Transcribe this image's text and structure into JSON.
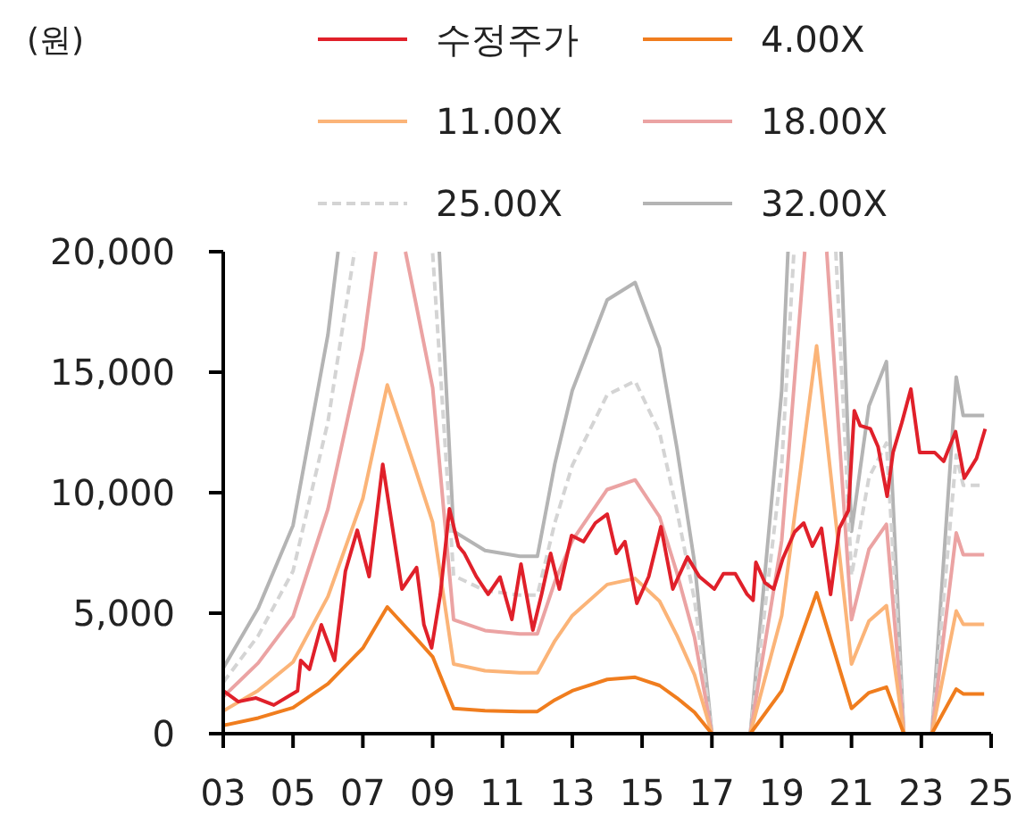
{
  "chart_data": {
    "type": "line",
    "annotations": [
      "(원)"
    ],
    "legend": "top",
    "grid": false,
    "xlim": [
      2003,
      2025
    ],
    "xticks": [
      {
        "value": 2003,
        "label": "03"
      },
      {
        "value": 2005,
        "label": "05"
      },
      {
        "value": 2007,
        "label": "07"
      },
      {
        "value": 2009,
        "label": "09"
      },
      {
        "value": 2011,
        "label": "11"
      },
      {
        "value": 2013,
        "label": "13"
      },
      {
        "value": 2015,
        "label": "15"
      },
      {
        "value": 2017,
        "label": "17"
      },
      {
        "value": 2019,
        "label": "19"
      },
      {
        "value": 2021,
        "label": "21"
      },
      {
        "value": 2023,
        "label": "23"
      },
      {
        "value": 2025,
        "label": "25"
      }
    ],
    "ylim": [
      0,
      20000
    ],
    "yticks": [
      0,
      {
        "value": 5000,
        "label": "5,000"
      },
      {
        "value": 10000,
        "label": "10,000"
      },
      {
        "value": 15000,
        "label": "15,000"
      },
      {
        "value": 20000,
        "label": "20,000"
      }
    ],
    "x": [
      2003,
      2004,
      2005,
      2006,
      2007,
      2007.7,
      2008.5,
      2009,
      2009.6,
      2010.5,
      2011.5,
      2012,
      2012.5,
      2013,
      2014,
      2014.8,
      2015.5,
      2016,
      2016.5,
      2017,
      2018.1,
      2019,
      2020,
      2021,
      2021.5,
      2022,
      2022.5,
      2023.3,
      2024,
      2024.2,
      2024.8
    ],
    "series": [
      {
        "name": "수정주가",
        "color": "#e0202a",
        "line_style": "solid",
        "x": [
          2003,
          2003.43,
          2003.94,
          2004.45,
          2005.13,
          2005.22,
          2005.47,
          2005.81,
          2006.19,
          2006.5,
          2006.84,
          2007.18,
          2007.57,
          2007.78,
          2008.12,
          2008.54,
          2008.75,
          2008.97,
          2009.22,
          2009.48,
          2009.74,
          2009.91,
          2010.25,
          2010.59,
          2010.93,
          2011.27,
          2011.53,
          2011.87,
          2012.12,
          2012.38,
          2012.63,
          2012.98,
          2013.32,
          2013.66,
          2014,
          2014.26,
          2014.51,
          2014.85,
          2015.19,
          2015.54,
          2015.88,
          2016.3,
          2016.64,
          2017.07,
          2017.33,
          2017.67,
          2018.01,
          2018.18,
          2018.26,
          2018.52,
          2018.77,
          2019.03,
          2019.37,
          2019.63,
          2019.88,
          2020.14,
          2020.4,
          2020.65,
          2020.91,
          2021.08,
          2021.25,
          2021.54,
          2021.76,
          2022.02,
          2022.19,
          2022.44,
          2022.7,
          2022.95,
          2023.38,
          2023.64,
          2023.98,
          2024.23,
          2024.58,
          2024.83
        ],
        "values": [
          1780,
          1330,
          1480,
          1190,
          1780,
          3040,
          2670,
          4520,
          3040,
          6740,
          8440,
          6520,
          11180,
          9190,
          6000,
          6890,
          4520,
          3560,
          5780,
          9330,
          7780,
          7480,
          6520,
          5780,
          6500,
          4740,
          7040,
          4300,
          5780,
          7480,
          6000,
          8220,
          7970,
          8740,
          9110,
          7480,
          7970,
          5410,
          6520,
          8590,
          6000,
          7330,
          6520,
          6000,
          6640,
          6640,
          5780,
          5530,
          7110,
          6260,
          6000,
          7260,
          8370,
          8740,
          7780,
          8520,
          5780,
          8520,
          9260,
          13400,
          12780,
          12650,
          11910,
          9850,
          11670,
          12900,
          14300,
          11670,
          11670,
          11300,
          12530,
          10600,
          11420,
          12650
        ]
      },
      {
        "name": "4.00X",
        "color": "#f07d1e",
        "line_style": "solid",
        "values": [
          340,
          650,
          1080,
          2070,
          3550,
          5260,
          4000,
          3190,
          1050,
          950,
          920,
          920,
          1400,
          1780,
          2250,
          2340,
          2000,
          1480,
          890,
          0,
          0,
          1780,
          5850,
          1050,
          1700,
          1930,
          0,
          0,
          1850,
          1650,
          1650
        ]
      },
      {
        "name": "11.00X",
        "color": "#fbb478",
        "line_style": "solid",
        "values": [
          940,
          1790,
          2970,
          5690,
          9760,
          14470,
          11000,
          8770,
          2890,
          2610,
          2530,
          2530,
          3850,
          4900,
          6190,
          6440,
          5500,
          4070,
          2450,
          0,
          0,
          4900,
          16090,
          2890,
          4680,
          5310,
          0,
          0,
          5090,
          4540,
          4540
        ]
      },
      {
        "name": "18.00X",
        "color": "#eba3a3",
        "line_style": "solid",
        "x": [
          2003,
          2004,
          2005,
          2006,
          2007,
          2007.37,
          2007.7,
          2008.22,
          2008.5,
          2009,
          2009.6,
          2010.5,
          2011.5,
          2012,
          2012.5,
          2013,
          2014,
          2014.8,
          2015.5,
          2016,
          2016.5,
          2017,
          2018.1,
          2019,
          2019.66,
          2020,
          2020.29,
          2021,
          2021.5,
          2022,
          2022.5,
          2023.3,
          2024,
          2024.2,
          2024.8
        ],
        "values": [
          1530,
          2930,
          4860,
          9320,
          15980,
          20000,
          null,
          20000,
          18000,
          14360,
          4730,
          4280,
          4140,
          4140,
          6300,
          8010,
          10130,
          10530,
          9000,
          6660,
          4010,
          0,
          0,
          8010,
          20000,
          null,
          20000,
          4730,
          7650,
          8690,
          0,
          0,
          8330,
          7430,
          7430
        ]
      },
      {
        "name": "25.00X",
        "color": "#d4d4d4",
        "line_style": "dashed",
        "x": [
          2003,
          2004,
          2005,
          2006,
          2006.76,
          2007.7,
          2009,
          2009.6,
          2010.5,
          2011.5,
          2012,
          2012.5,
          2013,
          2014,
          2014.8,
          2015.5,
          2016,
          2016.5,
          2017,
          2018.1,
          2019,
          2019.35,
          2020,
          2020.55,
          2021,
          2021.5,
          2022,
          2022.5,
          2023.3,
          2024,
          2024.2,
          2024.8
        ],
        "values": [
          2130,
          4060,
          6750,
          12940,
          20000,
          null,
          19940,
          6560,
          5940,
          5750,
          5750,
          8750,
          11130,
          14060,
          14630,
          12500,
          9250,
          5560,
          0,
          0,
          11130,
          20000,
          null,
          20000,
          6560,
          10630,
          12060,
          0,
          0,
          11560,
          10310,
          10310
        ]
      },
      {
        "name": "32.00X",
        "color": "#b4b4b4",
        "line_style": "solid",
        "x": [
          2003,
          2004,
          2005,
          2006,
          2006.29,
          2007.7,
          2009.19,
          2009.6,
          2010.5,
          2011.5,
          2012,
          2012.5,
          2013,
          2014,
          2014.8,
          2015.5,
          2016,
          2016.5,
          2017,
          2018.1,
          2019,
          2019.18,
          2020,
          2020.7,
          2021,
          2021.5,
          2022,
          2022.5,
          2023.3,
          2024,
          2024.2,
          2024.8
        ],
        "values": [
          2720,
          5200,
          8640,
          16560,
          20000,
          null,
          20000,
          8400,
          7600,
          7360,
          7360,
          11200,
          14240,
          18000,
          18720,
          16000,
          11840,
          7120,
          0,
          0,
          14240,
          20000,
          null,
          20000,
          8400,
          13600,
          15440,
          0,
          0,
          14800,
          13200,
          13200
        ]
      }
    ]
  }
}
